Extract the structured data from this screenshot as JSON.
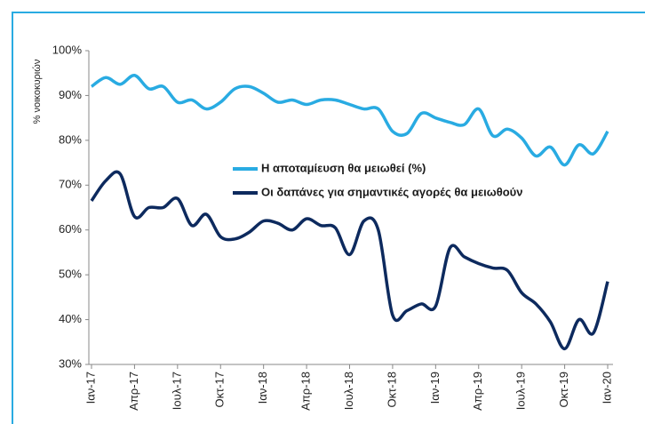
{
  "chart_data": {
    "type": "line",
    "ylabel": "% νοικοκυριών",
    "categories": [
      "Ιαν-17",
      null,
      null,
      "Απρ-17",
      null,
      null,
      "Ιουλ-17",
      null,
      null,
      "Οκτ-17",
      null,
      null,
      "Ιαν-18",
      null,
      null,
      "Απρ-18",
      null,
      null,
      "Ιουλ-18",
      null,
      null,
      "Οκτ-18",
      null,
      null,
      "Ιαν-19",
      null,
      null,
      "Απρ-19",
      null,
      null,
      "Ιουλ-19",
      null,
      null,
      "Οκτ-19",
      null,
      null,
      "Ιαν-20"
    ],
    "series": [
      {
        "name": "Η αποταμίευση θα μειωθεί (%)",
        "color": "#29abe2",
        "values": [
          92,
          94,
          92.5,
          94.5,
          91.5,
          92,
          88.5,
          89,
          87,
          88.5,
          91.5,
          92,
          90.5,
          88.5,
          89,
          88,
          89,
          89,
          88,
          87,
          87,
          82,
          81.5,
          86,
          85,
          84,
          83.5,
          87,
          81,
          82.5,
          80.5,
          76.5,
          78.5,
          74.5,
          79,
          77,
          82
        ]
      },
      {
        "name": "Οι δαπάνες για σημαντικές αγορές θα μειωθούν",
        "color": "#0d2a5e",
        "values": [
          66.5,
          71,
          72.5,
          63,
          65,
          65,
          67,
          61,
          63.5,
          58.5,
          58,
          59.5,
          62,
          61.5,
          60,
          62.5,
          61,
          60.5,
          54.5,
          62,
          60,
          41,
          42,
          43.5,
          43,
          56,
          54,
          52.5,
          51.5,
          51,
          46,
          43.5,
          39.5,
          33.5,
          40,
          37,
          48.5
        ]
      }
    ],
    "ylim": [
      30,
      100
    ],
    "yticks": [
      {
        "value": 30,
        "label": "30%"
      },
      {
        "value": 40,
        "label": "40%"
      },
      {
        "value": 50,
        "label": "50%"
      },
      {
        "value": 60,
        "label": "60%"
      },
      {
        "value": 70,
        "label": "70%"
      },
      {
        "value": 80,
        "label": "80%"
      },
      {
        "value": 90,
        "label": "90%"
      },
      {
        "value": 100,
        "label": "100%"
      }
    ]
  }
}
